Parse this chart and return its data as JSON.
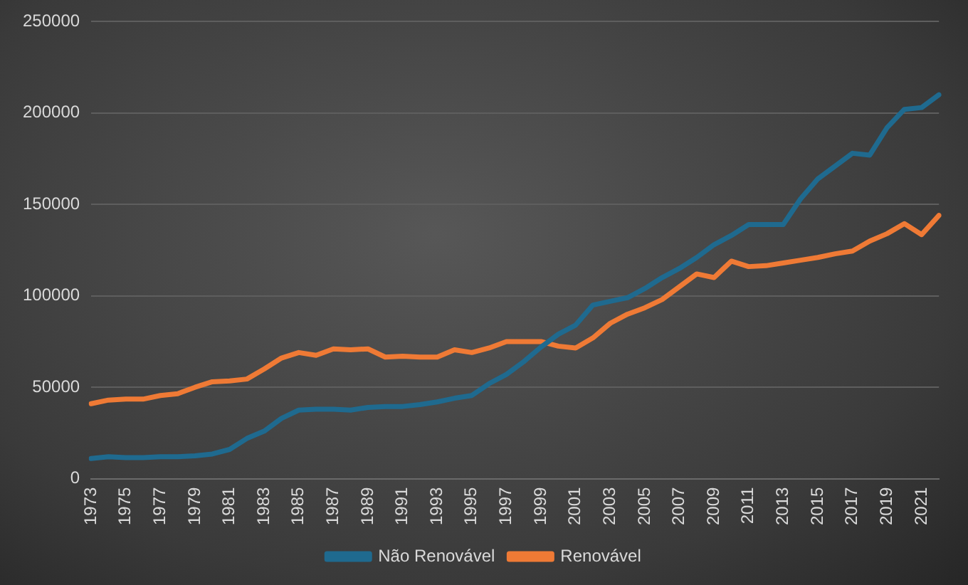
{
  "chart_data": {
    "type": "line",
    "categories": [
      "1973",
      null,
      "1975",
      null,
      "1977",
      null,
      "1979",
      null,
      "1981",
      null,
      "1983",
      null,
      "1985",
      null,
      "1987",
      null,
      "1989",
      null,
      "1991",
      null,
      "1993",
      null,
      "1995",
      null,
      "1997",
      null,
      "1999",
      null,
      "2001",
      null,
      "2003",
      null,
      "2005",
      null,
      "2007",
      null,
      "2009",
      null,
      "2011",
      null,
      "2013",
      null,
      "2015",
      null,
      "2017",
      null,
      "2019",
      null,
      "2021",
      null
    ],
    "series": [
      {
        "name": "Não Renovável",
        "color": "#1f6a8f",
        "values": [
          11000,
          12000,
          11500,
          11500,
          12000,
          12000,
          12500,
          13500,
          16000,
          22000,
          26000,
          33000,
          37500,
          38000,
          38000,
          37500,
          39000,
          39500,
          39500,
          40500,
          42000,
          44000,
          45500,
          52000,
          57000,
          64000,
          72000,
          79000,
          84000,
          95000,
          97000,
          99000,
          104000,
          110000,
          115000,
          121000,
          128000,
          133000,
          139000,
          139000,
          139000,
          153000,
          164000,
          171000,
          178000,
          177000,
          192000,
          202000,
          203000,
          210000
        ]
      },
      {
        "name": "Renovável",
        "color": "#ef7a35",
        "values": [
          41000,
          43000,
          43500,
          43500,
          45500,
          46500,
          50000,
          53000,
          53500,
          54500,
          60000,
          66000,
          69000,
          67500,
          71000,
          70500,
          71000,
          66500,
          67000,
          66500,
          66500,
          70500,
          69000,
          71500,
          75000,
          75000,
          75000,
          72500,
          71500,
          77000,
          85000,
          90000,
          93500,
          98000,
          105000,
          112000,
          110000,
          119000,
          116000,
          116500,
          118000,
          119500,
          121000,
          123000,
          124500,
          130000,
          134000,
          139500,
          133500,
          144000
        ]
      }
    ],
    "ylim": [
      0,
      250000
    ],
    "yticks": [
      0,
      50000,
      100000,
      150000,
      200000,
      250000
    ],
    "grid": "y",
    "legend": "bottom",
    "marker": "none",
    "line_style": "solid"
  }
}
